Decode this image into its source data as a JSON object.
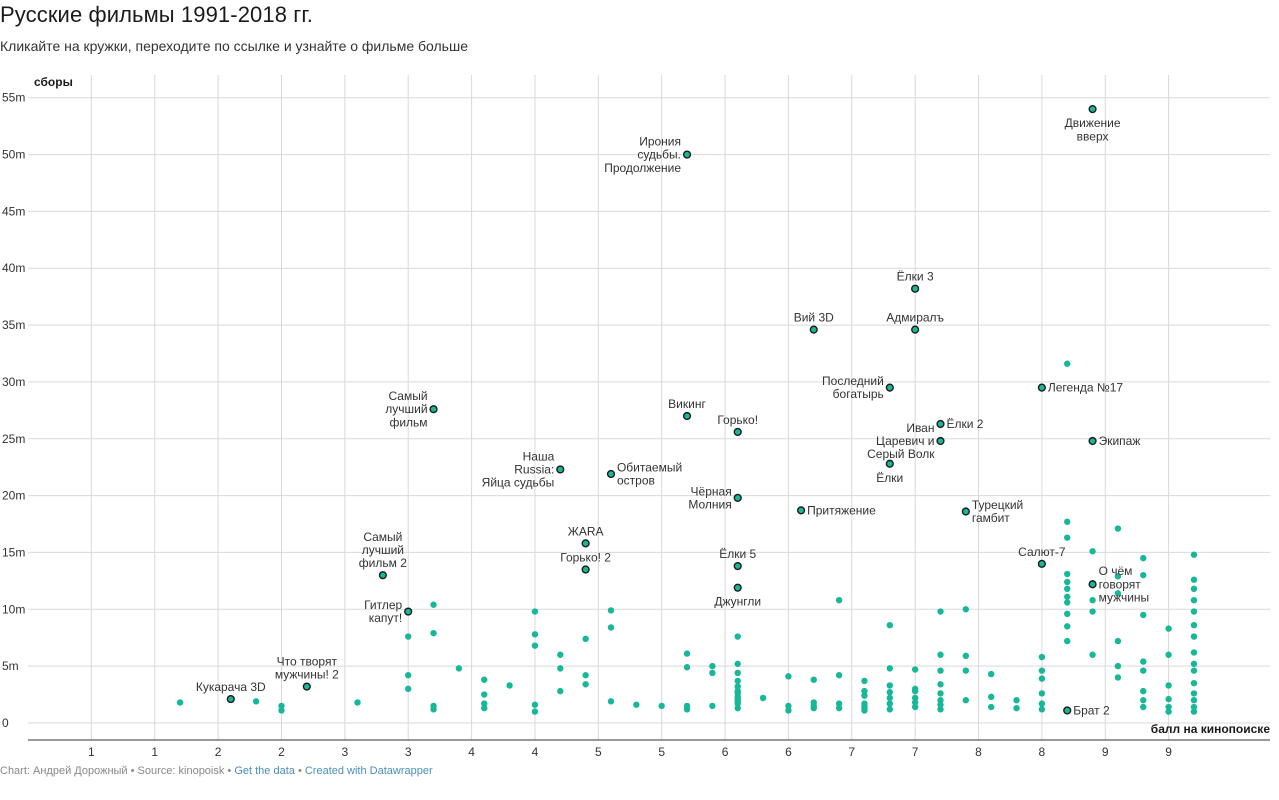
{
  "title": "Русские фильмы 1991-2018 гг.",
  "subtitle": "Кликайте на кружки, переходите по ссылке и узнайте о фильме больше",
  "footer": {
    "chart_by": "Chart: Андрей Дорожный",
    "sep1": " • ",
    "source": "Source: kinopoisk",
    "sep2": " • ",
    "get_data": "Get the data",
    "sep3": " • ",
    "created": "Created with Datawrapper"
  },
  "colors": {
    "dot": "#17b898",
    "outline": "#1b1b1b",
    "grid": "#d9d9d9",
    "link": "#4a90b8"
  },
  "chart_data": {
    "type": "scatter",
    "title": "Русские фильмы 1991-2018 гг.",
    "xlabel": "балл на кинопоиске",
    "ylabel": "сборы",
    "xlim": [
      0,
      9.8
    ],
    "ylim": [
      -1.5,
      57
    ],
    "grid": true,
    "x_tick_labels": [
      "1",
      "1",
      "2",
      "2",
      "3",
      "3",
      "4",
      "4",
      "5",
      "5",
      "6",
      "6",
      "7",
      "7",
      "8",
      "8",
      "9",
      "9"
    ],
    "y_ticks": [
      {
        "v": 0,
        "label": "0"
      },
      {
        "v": 5,
        "label": "5m"
      },
      {
        "v": 10,
        "label": "10m"
      },
      {
        "v": 15,
        "label": "15m"
      },
      {
        "v": 20,
        "label": "20m"
      },
      {
        "v": 25,
        "label": "25m"
      },
      {
        "v": 30,
        "label": "30m"
      },
      {
        "v": 35,
        "label": "35m"
      },
      {
        "v": 40,
        "label": "40m"
      },
      {
        "v": 45,
        "label": "45m"
      },
      {
        "v": 50,
        "label": "50m"
      },
      {
        "v": 55,
        "label": "55m"
      }
    ],
    "labeled_points": [
      {
        "name": "Движение вверх",
        "x": 8.4,
        "y": 54.0,
        "lines": [
          "Движение",
          "вверх"
        ],
        "pos": "below"
      },
      {
        "name": "Ирония судьбы. Продолжение",
        "x": 5.2,
        "y": 50.0,
        "lines": [
          "Ирония",
          "судьбы.",
          "Продолжение"
        ],
        "pos": "left"
      },
      {
        "name": "Ёлки 3",
        "x": 7.0,
        "y": 38.2,
        "lines": [
          "Ёлки 3"
        ],
        "pos": "above"
      },
      {
        "name": "Вий 3D",
        "x": 6.2,
        "y": 34.6,
        "lines": [
          "Вий 3D"
        ],
        "pos": "above"
      },
      {
        "name": "Адмиралъ",
        "x": 7.0,
        "y": 34.6,
        "lines": [
          "Адмиралъ"
        ],
        "pos": "above"
      },
      {
        "name": "Последний богатырь",
        "x": 6.8,
        "y": 29.5,
        "lines": [
          "Последний",
          "богатырь"
        ],
        "pos": "left"
      },
      {
        "name": "Легенда №17",
        "x": 8.0,
        "y": 29.5,
        "lines": [
          "Легенда №17"
        ],
        "pos": "right"
      },
      {
        "name": "Самый лучший фильм",
        "x": 3.2,
        "y": 27.6,
        "lines": [
          "Самый",
          "лучший",
          "фильм"
        ],
        "pos": "left"
      },
      {
        "name": "Викинг",
        "x": 5.2,
        "y": 27.0,
        "lines": [
          "Викинг"
        ],
        "pos": "above"
      },
      {
        "name": "Ёлки 2",
        "x": 7.2,
        "y": 26.3,
        "lines": [
          "Ёлки 2"
        ],
        "pos": "right"
      },
      {
        "name": "Горько!",
        "x": 5.6,
        "y": 25.6,
        "lines": [
          "Горько!"
        ],
        "pos": "above"
      },
      {
        "name": "Иван Царевич и Серый Волк",
        "x": 7.2,
        "y": 24.8,
        "lines": [
          "Иван",
          "Царевич и",
          "Серый Волк"
        ],
        "pos": "left"
      },
      {
        "name": "Экипаж",
        "x": 8.4,
        "y": 24.8,
        "lines": [
          "Экипаж"
        ],
        "pos": "right"
      },
      {
        "name": "Ёлки",
        "x": 6.8,
        "y": 22.8,
        "lines": [
          "Ёлки"
        ],
        "pos": "below"
      },
      {
        "name": "Наша Russia: Яйца судьбы",
        "x": 4.2,
        "y": 22.3,
        "lines": [
          "Наша",
          "Russia:",
          "Яйца судьбы"
        ],
        "pos": "left"
      },
      {
        "name": "Обитаемый остров",
        "x": 4.6,
        "y": 21.9,
        "lines": [
          "Обитаемый",
          "остров"
        ],
        "pos": "right"
      },
      {
        "name": "Чёрная Молния",
        "x": 5.6,
        "y": 19.8,
        "lines": [
          "Чёрная",
          "Молния"
        ],
        "pos": "left"
      },
      {
        "name": "Притяжение",
        "x": 6.1,
        "y": 18.7,
        "lines": [
          "Притяжение"
        ],
        "pos": "right"
      },
      {
        "name": "Турецкий гамбит",
        "x": 7.4,
        "y": 18.6,
        "lines": [
          "Турецкий",
          "гамбит"
        ],
        "pos": "right"
      },
      {
        "name": "ЖАRA",
        "x": 4.4,
        "y": 15.8,
        "lines": [
          "ЖАRA"
        ],
        "pos": "above"
      },
      {
        "name": "Салют-7",
        "x": 8.0,
        "y": 14.0,
        "lines": [
          "Салют-7"
        ],
        "pos": "above"
      },
      {
        "name": "Ёлки 5",
        "x": 5.6,
        "y": 13.8,
        "lines": [
          "Ёлки 5"
        ],
        "pos": "above"
      },
      {
        "name": "Горько! 2",
        "x": 4.4,
        "y": 13.5,
        "lines": [
          "Горько! 2"
        ],
        "pos": "above"
      },
      {
        "name": "Самый лучший фильм 2",
        "x": 2.8,
        "y": 13.0,
        "lines": [
          "Самый",
          "лучший",
          "фильм 2"
        ],
        "pos": "above"
      },
      {
        "name": "О чём говорят мужчины",
        "x": 8.4,
        "y": 12.2,
        "lines": [
          "О чём",
          "говорят",
          "мужчины"
        ],
        "pos": "right"
      },
      {
        "name": "Джунгли",
        "x": 5.6,
        "y": 11.9,
        "lines": [
          "Джунгли"
        ],
        "pos": "below"
      },
      {
        "name": "Гитлер капут!",
        "x": 3.0,
        "y": 9.8,
        "lines": [
          "Гитлер",
          "капут!"
        ],
        "pos": "left"
      },
      {
        "name": "Что творят мужчины! 2",
        "x": 2.2,
        "y": 3.2,
        "lines": [
          "Что творят",
          "мужчины! 2"
        ],
        "pos": "above"
      },
      {
        "name": "Кукарача 3D",
        "x": 1.6,
        "y": 2.1,
        "lines": [
          "Кукарача 3D"
        ],
        "pos": "above"
      },
      {
        "name": "Брат 2",
        "x": 8.2,
        "y": 1.1,
        "lines": [
          "Брат 2"
        ],
        "pos": "right"
      }
    ],
    "points": [
      [
        1.2,
        1.8
      ],
      [
        1.8,
        1.9
      ],
      [
        2.0,
        1.5
      ],
      [
        2.0,
        1.1
      ],
      [
        2.6,
        1.8
      ],
      [
        3.0,
        7.6
      ],
      [
        3.0,
        4.2
      ],
      [
        3.0,
        3.0
      ],
      [
        3.2,
        10.4
      ],
      [
        3.2,
        7.9
      ],
      [
        3.2,
        1.5
      ],
      [
        3.2,
        1.2
      ],
      [
        3.4,
        4.8
      ],
      [
        3.6,
        3.8
      ],
      [
        3.6,
        2.5
      ],
      [
        3.6,
        1.7
      ],
      [
        3.6,
        1.3
      ],
      [
        3.8,
        3.3
      ],
      [
        4.0,
        9.8
      ],
      [
        4.0,
        7.8
      ],
      [
        4.0,
        6.8
      ],
      [
        4.0,
        1.6
      ],
      [
        4.0,
        1.0
      ],
      [
        4.2,
        6.0
      ],
      [
        4.2,
        4.8
      ],
      [
        4.2,
        2.8
      ],
      [
        4.4,
        7.4
      ],
      [
        4.4,
        4.2
      ],
      [
        4.4,
        3.4
      ],
      [
        4.6,
        9.9
      ],
      [
        4.6,
        8.4
      ],
      [
        4.6,
        1.9
      ],
      [
        4.8,
        1.6
      ],
      [
        5.0,
        1.5
      ],
      [
        5.2,
        6.1
      ],
      [
        5.2,
        4.9
      ],
      [
        5.2,
        1.5
      ],
      [
        5.2,
        1.2
      ],
      [
        5.4,
        5.0
      ],
      [
        5.4,
        4.4
      ],
      [
        5.4,
        1.5
      ],
      [
        5.6,
        2.6
      ],
      [
        5.6,
        2.1
      ],
      [
        5.6,
        1.7
      ],
      [
        5.6,
        1.3
      ],
      [
        5.6,
        11.9
      ],
      [
        5.6,
        7.6
      ],
      [
        5.6,
        5.2
      ],
      [
        5.6,
        4.4
      ],
      [
        5.6,
        3.7
      ],
      [
        5.6,
        3.2
      ],
      [
        5.6,
        2.8
      ],
      [
        5.6,
        2.3
      ],
      [
        5.6,
        1.9
      ],
      [
        5.8,
        2.2
      ],
      [
        6.0,
        4.1
      ],
      [
        6.0,
        1.1
      ],
      [
        6.0,
        1.5
      ],
      [
        6.2,
        3.8
      ],
      [
        6.2,
        1.3
      ],
      [
        6.2,
        1.8
      ],
      [
        6.2,
        1.5
      ],
      [
        6.4,
        10.8
      ],
      [
        6.4,
        4.2
      ],
      [
        6.4,
        1.3
      ],
      [
        6.4,
        1.7
      ],
      [
        6.6,
        2.4
      ],
      [
        6.6,
        1.5
      ],
      [
        6.6,
        1.1
      ],
      [
        6.6,
        3.7
      ],
      [
        6.6,
        2.8
      ],
      [
        6.6,
        1.7
      ],
      [
        6.6,
        1.3
      ],
      [
        6.8,
        8.6
      ],
      [
        6.8,
        4.8
      ],
      [
        6.8,
        3.3
      ],
      [
        6.8,
        2.7
      ],
      [
        6.8,
        2.2
      ],
      [
        6.8,
        1.7
      ],
      [
        6.8,
        1.2
      ],
      [
        7.0,
        4.7
      ],
      [
        7.0,
        2.8
      ],
      [
        7.0,
        2.2
      ],
      [
        7.0,
        1.8
      ],
      [
        7.0,
        1.4
      ],
      [
        7.0,
        3.0
      ],
      [
        7.2,
        9.8
      ],
      [
        7.2,
        6.0
      ],
      [
        7.2,
        4.6
      ],
      [
        7.2,
        3.4
      ],
      [
        7.2,
        2.6
      ],
      [
        7.2,
        2.0
      ],
      [
        7.2,
        1.6
      ],
      [
        7.2,
        1.2
      ],
      [
        7.4,
        10.0
      ],
      [
        7.4,
        5.9
      ],
      [
        7.4,
        4.6
      ],
      [
        7.4,
        2.0
      ],
      [
        7.6,
        4.3
      ],
      [
        7.6,
        2.3
      ],
      [
        7.6,
        1.4
      ],
      [
        7.8,
        2.0
      ],
      [
        7.8,
        1.3
      ],
      [
        8.0,
        5.8
      ],
      [
        8.0,
        4.6
      ],
      [
        8.0,
        3.9
      ],
      [
        8.0,
        2.6
      ],
      [
        8.0,
        1.7
      ],
      [
        8.0,
        1.2
      ],
      [
        8.2,
        31.6
      ],
      [
        8.2,
        17.7
      ],
      [
        8.2,
        16.3
      ],
      [
        8.2,
        13.1
      ],
      [
        8.2,
        12.4
      ],
      [
        8.2,
        11.8
      ],
      [
        8.2,
        11.1
      ],
      [
        8.2,
        10.6
      ],
      [
        8.2,
        9.6
      ],
      [
        8.2,
        8.5
      ],
      [
        8.2,
        7.2
      ],
      [
        8.4,
        15.1
      ],
      [
        8.4,
        10.8
      ],
      [
        8.4,
        9.8
      ],
      [
        8.4,
        6.0
      ],
      [
        8.6,
        17.1
      ],
      [
        8.6,
        12.9
      ],
      [
        8.6,
        11.4
      ],
      [
        8.6,
        7.2
      ],
      [
        8.6,
        5.0
      ],
      [
        8.6,
        4.0
      ],
      [
        8.8,
        14.5
      ],
      [
        8.8,
        13.0
      ],
      [
        8.8,
        9.5
      ],
      [
        8.8,
        5.4
      ],
      [
        8.8,
        4.6
      ],
      [
        8.8,
        2.8
      ],
      [
        8.8,
        2.0
      ],
      [
        8.8,
        1.4
      ],
      [
        9.0,
        8.3
      ],
      [
        9.0,
        6.0
      ],
      [
        9.0,
        3.3
      ],
      [
        9.0,
        2.1
      ],
      [
        9.0,
        1.4
      ],
      [
        9.0,
        1.0
      ],
      [
        9.2,
        14.8
      ],
      [
        9.2,
        12.6
      ],
      [
        9.2,
        11.8
      ],
      [
        9.2,
        10.8
      ],
      [
        9.2,
        9.8
      ],
      [
        9.2,
        8.6
      ],
      [
        9.2,
        7.6
      ],
      [
        9.2,
        6.2
      ],
      [
        9.2,
        5.2
      ],
      [
        9.2,
        4.6
      ],
      [
        9.2,
        3.5
      ],
      [
        9.2,
        2.6
      ],
      [
        9.2,
        2.0
      ],
      [
        9.2,
        1.4
      ],
      [
        9.2,
        1.0
      ]
    ]
  }
}
